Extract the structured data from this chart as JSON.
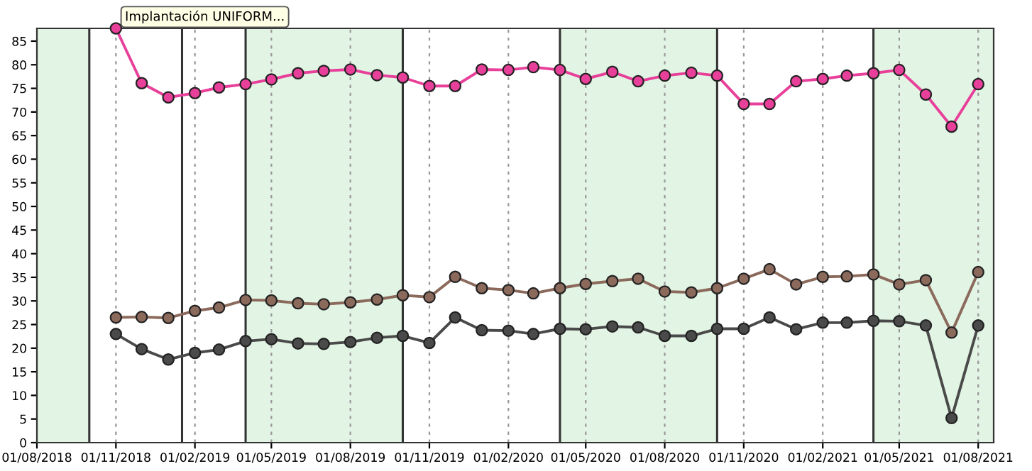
{
  "chart_data": {
    "type": "line",
    "x": [
      "2018-11-01",
      "2018-12-01",
      "2019-01-01",
      "2019-02-01",
      "2019-03-01",
      "2019-04-01",
      "2019-05-01",
      "2019-06-01",
      "2019-07-01",
      "2019-08-01",
      "2019-09-01",
      "2019-10-01",
      "2019-11-01",
      "2019-12-01",
      "2020-01-01",
      "2020-02-01",
      "2020-03-01",
      "2020-04-01",
      "2020-05-01",
      "2020-06-01",
      "2020-07-01",
      "2020-08-01",
      "2020-09-01",
      "2020-10-01",
      "2020-11-01",
      "2020-12-01",
      "2021-01-01",
      "2021-02-01",
      "2021-03-01",
      "2021-04-01",
      "2021-05-01",
      "2021-06-01",
      "2021-07-01",
      "2021-08-01"
    ],
    "series": [
      {
        "color": "#e8409a",
        "values": [
          87.7,
          76.1,
          73.1,
          74,
          75.2,
          75.9,
          76.9,
          78.2,
          78.7,
          79,
          77.8,
          77.3,
          75.5,
          75.5,
          79,
          78.9,
          79.5,
          78.9,
          77,
          78.5,
          76.5,
          77.7,
          78.3,
          77.7,
          71.7,
          71.7,
          76.5,
          77,
          77.7,
          78.2,
          78.9,
          73.7,
          66.9,
          75.9
        ]
      },
      {
        "color": "#8b6a5c",
        "values": [
          26.5,
          26.6,
          26.4,
          27.9,
          28.6,
          30.2,
          30.1,
          29.5,
          29.3,
          29.7,
          30.3,
          31.2,
          30.8,
          35.1,
          32.7,
          32.3,
          31.6,
          32.7,
          33.6,
          34.2,
          34.7,
          32,
          31.8,
          32.7,
          34.7,
          36.7,
          33.5,
          35.1,
          35.2,
          35.6,
          33.5,
          34.4,
          23.3,
          36.1
        ]
      },
      {
        "color": "#4a4a4a",
        "values": [
          23,
          19.8,
          17.6,
          19,
          19.7,
          21.5,
          21.9,
          21,
          20.9,
          21.3,
          22.2,
          22.6,
          21.1,
          26.5,
          23.8,
          23.7,
          23,
          24.1,
          24,
          24.6,
          24.4,
          22.6,
          22.6,
          24.1,
          24.1,
          26.5,
          24,
          25.4,
          25.4,
          25.8,
          25.7,
          24.8,
          5.2,
          24.8
        ]
      }
    ],
    "marker": "circle",
    "line_style": "solid",
    "grid": "x",
    "xlim": [
      "2018-08-01",
      "2021-08-19"
    ],
    "xticks": [
      {
        "value": "2018-08-01",
        "label": "01/08/2018"
      },
      {
        "value": "2018-11-01",
        "label": "01/11/2018"
      },
      {
        "value": "2019-02-01",
        "label": "01/02/2019"
      },
      {
        "value": "2019-05-01",
        "label": "01/05/2019"
      },
      {
        "value": "2019-08-01",
        "label": "01/08/2019"
      },
      {
        "value": "2019-11-01",
        "label": "01/11/2019"
      },
      {
        "value": "2020-02-01",
        "label": "01/02/2020"
      },
      {
        "value": "2020-05-01",
        "label": "01/05/2020"
      },
      {
        "value": "2020-08-01",
        "label": "01/08/2020"
      },
      {
        "value": "2020-11-01",
        "label": "01/11/2020"
      },
      {
        "value": "2021-02-01",
        "label": "01/02/2021"
      },
      {
        "value": "2021-05-01",
        "label": "01/05/2021"
      },
      {
        "value": "2021-08-01",
        "label": "01/08/2021"
      }
    ],
    "ylim": [
      0,
      87.7
    ],
    "yticks": [
      0,
      5,
      10,
      15,
      20,
      25,
      30,
      35,
      40,
      45,
      50,
      55,
      60,
      65,
      70,
      75,
      80,
      85
    ],
    "bands": [
      {
        "axis": "x",
        "from": "2018-08-01",
        "to": "2018-10-01",
        "color": "#e2f4e4"
      },
      {
        "axis": "x",
        "from": "2019-04-01",
        "to": "2019-10-01",
        "color": "#e2f4e4"
      },
      {
        "axis": "x",
        "from": "2020-04-01",
        "to": "2020-10-01",
        "color": "#e2f4e4"
      },
      {
        "axis": "x",
        "from": "2021-04-01",
        "to": "2021-08-19",
        "color": "#e2f4e4"
      }
    ],
    "ref_lines": [
      {
        "axis": "x",
        "value": "2018-10-01",
        "color": "#333333",
        "line_style": "solid"
      },
      {
        "axis": "x",
        "value": "2019-01-17",
        "color": "#333333",
        "line_style": "solid"
      },
      {
        "axis": "x",
        "value": "2019-04-01",
        "color": "#333333",
        "line_style": "solid"
      },
      {
        "axis": "x",
        "value": "2019-10-01",
        "color": "#333333",
        "line_style": "solid"
      },
      {
        "axis": "x",
        "value": "2020-04-01",
        "color": "#333333",
        "line_style": "solid"
      },
      {
        "axis": "x",
        "value": "2020-10-01",
        "color": "#333333",
        "line_style": "solid"
      },
      {
        "axis": "x",
        "value": "2021-04-01",
        "color": "#333333",
        "line_style": "solid"
      }
    ],
    "annotations": [
      "Implantación UNIFORM..."
    ]
  }
}
